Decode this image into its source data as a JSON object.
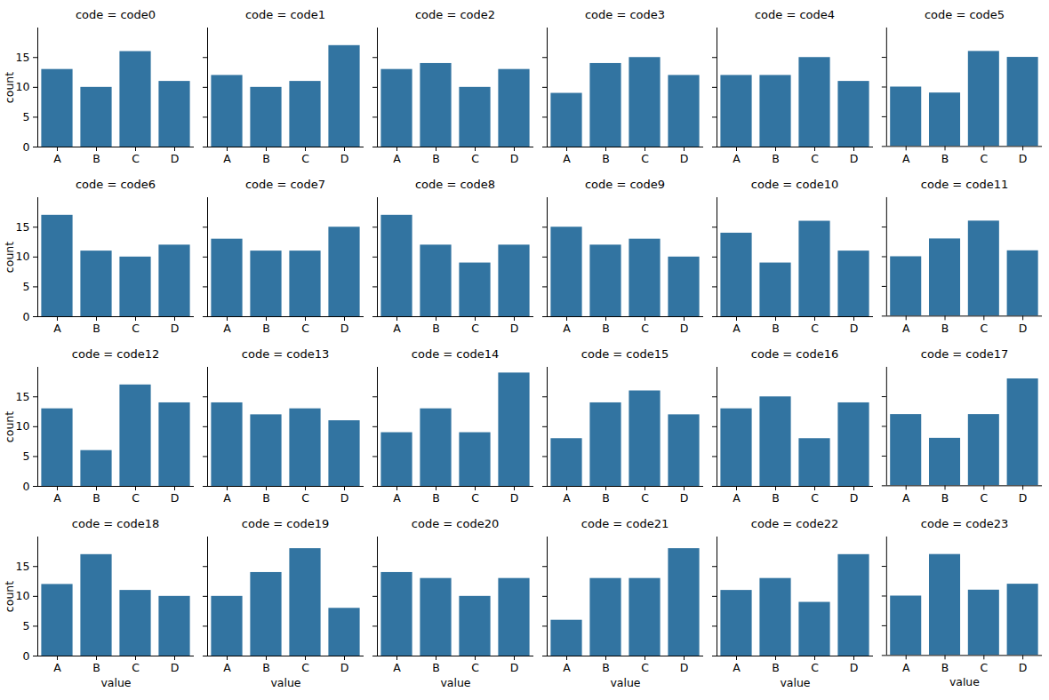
{
  "chart_data": [
    {
      "type": "bar",
      "title": "code = code0",
      "categories": [
        "A",
        "B",
        "C",
        "D"
      ],
      "values": [
        13,
        10,
        16,
        11
      ],
      "color": "#3274a1",
      "ylim": [
        0,
        19.95
      ],
      "yticks": [
        0,
        5,
        10,
        15
      ],
      "y_label": "count"
    },
    {
      "type": "bar",
      "title": "code = code1",
      "categories": [
        "A",
        "B",
        "C",
        "D"
      ],
      "values": [
        12,
        10,
        11,
        17
      ],
      "color": "#3274a1",
      "ylim": [
        0,
        19.95
      ],
      "yticks": [
        0,
        5,
        10,
        15
      ],
      "tick_labels": "x"
    },
    {
      "type": "bar",
      "title": "code = code2",
      "categories": [
        "A",
        "B",
        "C",
        "D"
      ],
      "values": [
        13,
        14,
        10,
        13
      ],
      "color": "#3274a1",
      "ylim": [
        0,
        19.95
      ],
      "yticks": [
        0,
        5,
        10,
        15
      ],
      "tick_labels": "x"
    },
    {
      "type": "bar",
      "title": "code = code3",
      "categories": [
        "A",
        "B",
        "C",
        "D"
      ],
      "values": [
        9,
        14,
        15,
        12
      ],
      "color": "#3274a1",
      "ylim": [
        0,
        19.95
      ],
      "yticks": [
        0,
        5,
        10,
        15
      ],
      "tick_labels": "x"
    },
    {
      "type": "bar",
      "title": "code = code4",
      "categories": [
        "A",
        "B",
        "C",
        "D"
      ],
      "values": [
        12,
        12,
        15,
        11
      ],
      "color": "#3274a1",
      "ylim": [
        0,
        19.95
      ],
      "yticks": [
        0,
        5,
        10,
        15
      ],
      "tick_labels": "x"
    },
    {
      "type": "bar",
      "title": "code = code5",
      "categories": [
        "A",
        "B",
        "C",
        "D"
      ],
      "values": [
        10,
        9,
        16,
        15
      ],
      "color": "#3274a1",
      "ylim": [
        0,
        19.95
      ],
      "yticks": [
        0,
        5,
        10,
        15
      ],
      "tick_labels": "x"
    },
    {
      "type": "bar",
      "title": "code = code6",
      "categories": [
        "A",
        "B",
        "C",
        "D"
      ],
      "values": [
        17,
        11,
        10,
        12
      ],
      "color": "#3274a1",
      "ylim": [
        0,
        19.95
      ],
      "yticks": [
        0,
        5,
        10,
        15
      ],
      "y_label": "count"
    },
    {
      "type": "bar",
      "title": "code = code7",
      "categories": [
        "A",
        "B",
        "C",
        "D"
      ],
      "values": [
        13,
        11,
        11,
        15
      ],
      "color": "#3274a1",
      "ylim": [
        0,
        19.95
      ],
      "yticks": [
        0,
        5,
        10,
        15
      ],
      "tick_labels": "x"
    },
    {
      "type": "bar",
      "title": "code = code8",
      "categories": [
        "A",
        "B",
        "C",
        "D"
      ],
      "values": [
        17,
        12,
        9,
        12
      ],
      "color": "#3274a1",
      "ylim": [
        0,
        19.95
      ],
      "yticks": [
        0,
        5,
        10,
        15
      ],
      "tick_labels": "x"
    },
    {
      "type": "bar",
      "title": "code = code9",
      "categories": [
        "A",
        "B",
        "C",
        "D"
      ],
      "values": [
        15,
        12,
        13,
        10
      ],
      "color": "#3274a1",
      "ylim": [
        0,
        19.95
      ],
      "yticks": [
        0,
        5,
        10,
        15
      ],
      "tick_labels": "x"
    },
    {
      "type": "bar",
      "title": "code = code10",
      "categories": [
        "A",
        "B",
        "C",
        "D"
      ],
      "values": [
        14,
        9,
        16,
        11
      ],
      "color": "#3274a1",
      "ylim": [
        0,
        19.95
      ],
      "yticks": [
        0,
        5,
        10,
        15
      ],
      "tick_labels": "x"
    },
    {
      "type": "bar",
      "title": "code = code11",
      "categories": [
        "A",
        "B",
        "C",
        "D"
      ],
      "values": [
        10,
        13,
        16,
        11
      ],
      "color": "#3274a1",
      "ylim": [
        0,
        19.95
      ],
      "yticks": [
        0,
        5,
        10,
        15
      ],
      "tick_labels": "x"
    },
    {
      "type": "bar",
      "title": "code = code12",
      "categories": [
        "A",
        "B",
        "C",
        "D"
      ],
      "values": [
        13,
        6,
        17,
        14
      ],
      "color": "#3274a1",
      "ylim": [
        0,
        19.95
      ],
      "yticks": [
        0,
        5,
        10,
        15
      ],
      "y_label": "count"
    },
    {
      "type": "bar",
      "title": "code = code13",
      "categories": [
        "A",
        "B",
        "C",
        "D"
      ],
      "values": [
        14,
        12,
        13,
        11
      ],
      "color": "#3274a1",
      "ylim": [
        0,
        19.95
      ],
      "yticks": [
        0,
        5,
        10,
        15
      ],
      "tick_labels": "x"
    },
    {
      "type": "bar",
      "title": "code = code14",
      "categories": [
        "A",
        "B",
        "C",
        "D"
      ],
      "values": [
        9,
        13,
        9,
        19
      ],
      "color": "#3274a1",
      "ylim": [
        0,
        19.95
      ],
      "yticks": [
        0,
        5,
        10,
        15
      ],
      "tick_labels": "x"
    },
    {
      "type": "bar",
      "title": "code = code15",
      "categories": [
        "A",
        "B",
        "C",
        "D"
      ],
      "values": [
        8,
        14,
        16,
        12
      ],
      "color": "#3274a1",
      "ylim": [
        0,
        19.95
      ],
      "yticks": [
        0,
        5,
        10,
        15
      ],
      "tick_labels": "x"
    },
    {
      "type": "bar",
      "title": "code = code16",
      "categories": [
        "A",
        "B",
        "C",
        "D"
      ],
      "values": [
        13,
        15,
        8,
        14
      ],
      "color": "#3274a1",
      "ylim": [
        0,
        19.95
      ],
      "yticks": [
        0,
        5,
        10,
        15
      ],
      "tick_labels": "x"
    },
    {
      "type": "bar",
      "title": "code = code17",
      "categories": [
        "A",
        "B",
        "C",
        "D"
      ],
      "values": [
        12,
        8,
        12,
        18
      ],
      "color": "#3274a1",
      "ylim": [
        0,
        19.95
      ],
      "yticks": [
        0,
        5,
        10,
        15
      ],
      "tick_labels": "x"
    },
    {
      "type": "bar",
      "title": "code = code18",
      "categories": [
        "A",
        "B",
        "C",
        "D"
      ],
      "values": [
        12,
        17,
        11,
        10
      ],
      "color": "#3274a1",
      "ylim": [
        0,
        19.95
      ],
      "yticks": [
        0,
        5,
        10,
        15
      ],
      "y_label": "count",
      "x_label": "value"
    },
    {
      "type": "bar",
      "title": "code = code19",
      "categories": [
        "A",
        "B",
        "C",
        "D"
      ],
      "values": [
        10,
        14,
        18,
        8
      ],
      "color": "#3274a1",
      "ylim": [
        0,
        19.95
      ],
      "yticks": [
        0,
        5,
        10,
        15
      ],
      "tick_labels": "x",
      "x_label": "value"
    },
    {
      "type": "bar",
      "title": "code = code20",
      "categories": [
        "A",
        "B",
        "C",
        "D"
      ],
      "values": [
        14,
        13,
        10,
        13
      ],
      "color": "#3274a1",
      "ylim": [
        0,
        19.95
      ],
      "yticks": [
        0,
        5,
        10,
        15
      ],
      "tick_labels": "x",
      "x_label": "value"
    },
    {
      "type": "bar",
      "title": "code = code21",
      "categories": [
        "A",
        "B",
        "C",
        "D"
      ],
      "values": [
        6,
        13,
        13,
        18
      ],
      "color": "#3274a1",
      "ylim": [
        0,
        19.95
      ],
      "yticks": [
        0,
        5,
        10,
        15
      ],
      "tick_labels": "x",
      "x_label": "value"
    },
    {
      "type": "bar",
      "title": "code = code22",
      "categories": [
        "A",
        "B",
        "C",
        "D"
      ],
      "values": [
        11,
        13,
        9,
        17
      ],
      "color": "#3274a1",
      "ylim": [
        0,
        19.95
      ],
      "yticks": [
        0,
        5,
        10,
        15
      ],
      "tick_labels": "x",
      "x_label": "value"
    },
    {
      "type": "bar",
      "title": "code = code23",
      "categories": [
        "A",
        "B",
        "C",
        "D"
      ],
      "values": [
        10,
        17,
        11,
        12
      ],
      "color": "#3274a1",
      "ylim": [
        0,
        19.95
      ],
      "yticks": [
        0,
        5,
        10,
        15
      ],
      "tick_labels": "x",
      "x_label": "value"
    }
  ]
}
